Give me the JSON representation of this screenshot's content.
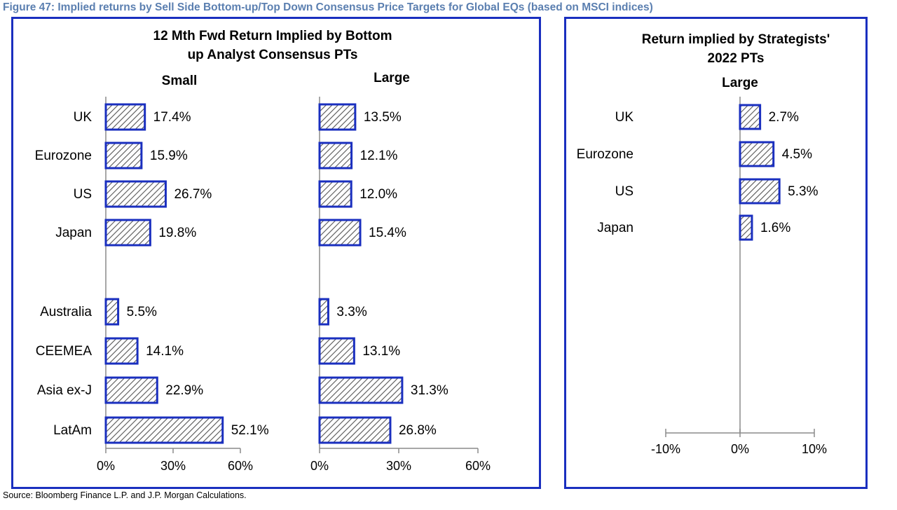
{
  "figure_title": "Figure 47: Implied returns by Sell Side Bottom-up/Top Down Consensus Price Targets for Global EQs (based on MSCI indices)",
  "source": "Source: Bloomberg Finance L.P. and J.P. Morgan Calculations.",
  "colors": {
    "bar_edge": "#1a2fbf",
    "hatch": "#555555",
    "frame": "#1a2fbf",
    "title_color": "#5b7fb0"
  },
  "chart_data": [
    {
      "type": "bar",
      "orientation": "horizontal",
      "title": "12 Mth Fwd Return Implied by Bottom up Analyst Consensus PTs",
      "title_lines": [
        "12 Mth Fwd Return Implied by Bottom",
        "up Analyst Consensus PTs"
      ],
      "panels": [
        {
          "subtitle": "Small",
          "categories": [
            "UK",
            "Eurozone",
            "US",
            "Japan",
            "Australia",
            "CEEMEA",
            "Asia ex-J",
            "LatAm"
          ],
          "values": [
            17.4,
            15.9,
            26.7,
            19.8,
            5.5,
            14.1,
            22.9,
            52.1
          ],
          "value_labels": [
            "17.4%",
            "15.9%",
            "26.7%",
            "19.8%",
            "5.5%",
            "14.1%",
            "22.9%",
            "52.1%"
          ],
          "xlim": [
            0,
            60
          ],
          "xticks": [
            0,
            30,
            60
          ],
          "xtick_labels": [
            "0%",
            "30%",
            "60%"
          ]
        },
        {
          "subtitle": "Large",
          "categories": [
            "UK",
            "Eurozone",
            "US",
            "Japan",
            "Australia",
            "CEEMEA",
            "Asia ex-J",
            "LatAm"
          ],
          "values": [
            13.5,
            12.1,
            12.0,
            15.4,
            3.3,
            13.1,
            31.3,
            26.8
          ],
          "value_labels": [
            "13.5%",
            "12.1%",
            "12.0%",
            "15.4%",
            "3.3%",
            "13.1%",
            "31.3%",
            "26.8%"
          ],
          "xlim": [
            0,
            60
          ],
          "xticks": [
            0,
            30,
            60
          ],
          "xtick_labels": [
            "0%",
            "30%",
            "60%"
          ]
        }
      ]
    },
    {
      "type": "bar",
      "orientation": "horizontal",
      "title": "Return implied by Strategists' 2022 PTs",
      "title_lines": [
        "Return implied by Strategists'",
        "2022 PTs"
      ],
      "subtitle": "Large",
      "categories": [
        "UK",
        "Eurozone",
        "US",
        "Japan"
      ],
      "values": [
        2.7,
        4.5,
        5.3,
        1.6
      ],
      "value_labels": [
        "2.7%",
        "4.5%",
        "5.3%",
        "1.6%"
      ],
      "xlim": [
        -10,
        10
      ],
      "xticks": [
        -10,
        0,
        10
      ],
      "xtick_labels": [
        "-10%",
        "0%",
        "10%"
      ]
    }
  ]
}
